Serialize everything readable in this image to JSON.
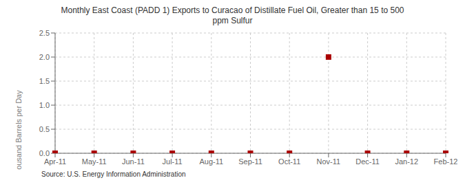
{
  "chart_data": {
    "type": "scatter",
    "title": "Monthly East Coast (PADD 1) Exports to Curacao of Distillate Fuel Oil, Greater than 15 to 500\nppm Sulfur",
    "ylabel": "Thousand Barrels per Day",
    "annotations": [
      "Source: U.S. Energy Information Administration"
    ],
    "categories": [
      "Apr-11",
      "May-11",
      "Jun-11",
      "Jul-11",
      "Aug-11",
      "Sep-11",
      "Oct-11",
      "Nov-11",
      "Dec-11",
      "Jan-12",
      "Feb-12"
    ],
    "values": [
      0.0,
      0.0,
      0.0,
      0.0,
      0.0,
      0.0,
      0.0,
      2.0,
      0.0,
      0.0,
      0.0
    ],
    "color": "#aa0000",
    "marker": "square",
    "ylim": [
      0.0,
      2.5
    ],
    "yticks": [
      {
        "value": 0,
        "label": "0.0"
      },
      0.5,
      {
        "value": 1,
        "label": "1.0"
      },
      1.5,
      {
        "value": 2,
        "label": "2.0"
      },
      2.5
    ],
    "grid": true
  }
}
